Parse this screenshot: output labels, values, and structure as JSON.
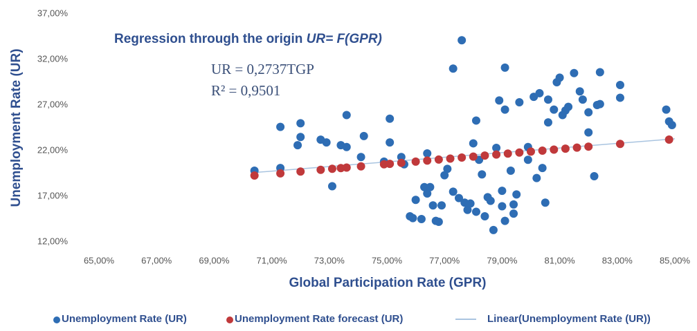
{
  "chart_data": {
    "type": "scatter",
    "title": "Regression through the origin ",
    "title_italic": "UR= F(GPR)",
    "annotations": [
      "UR = 0,2737TGP",
      "R² = 0,9501"
    ],
    "x_label": "Global Participation Rate (GPR)",
    "y_label": "Unemployment Rate (UR)",
    "xlim": [
      65,
      85
    ],
    "xticks": [
      {
        "value": 65,
        "label": "65,00%"
      },
      {
        "value": 67,
        "label": "67,00%"
      },
      {
        "value": 69,
        "label": "69,00%"
      },
      {
        "value": 71,
        "label": "71,00%"
      },
      {
        "value": 73,
        "label": "73,00%"
      },
      {
        "value": 75,
        "label": "75,00%"
      },
      {
        "value": 77,
        "label": "77,00%"
      },
      {
        "value": 79,
        "label": "79,00%"
      },
      {
        "value": 81,
        "label": "81,00%"
      },
      {
        "value": 83,
        "label": "83,00%"
      },
      {
        "value": 85,
        "label": "85,00%"
      }
    ],
    "ylim": [
      12,
      37
    ],
    "yticks": [
      {
        "value": 12,
        "label": "12,00%"
      },
      {
        "value": 17,
        "label": "17,00%"
      },
      {
        "value": 22,
        "label": "22,00%"
      },
      {
        "value": 27,
        "label": "27,00%"
      },
      {
        "value": 32,
        "label": "32,00%"
      },
      {
        "value": 37,
        "label": "37,00%"
      }
    ],
    "legend": "bottom",
    "series": [
      {
        "name": "Unemployment Rate (UR)",
        "color": "#2e6db4",
        "mark": "point",
        "x": [
          70.4,
          71.3,
          71.3,
          71.9,
          72.0,
          72.0,
          72.7,
          72.9,
          73.1,
          73.4,
          73.6,
          73.6,
          74.1,
          74.2,
          74.9,
          75.1,
          75.1,
          75.5,
          75.6,
          75.8,
          75.9,
          76.0,
          76.2,
          76.3,
          76.4,
          76.4,
          76.5,
          76.6,
          76.7,
          76.8,
          76.9,
          77.0,
          77.1,
          77.3,
          77.3,
          77.5,
          77.6,
          77.7,
          77.8,
          77.9,
          78.0,
          78.1,
          78.1,
          78.2,
          78.3,
          78.4,
          78.5,
          78.6,
          78.7,
          78.8,
          78.9,
          79.0,
          79.0,
          79.1,
          79.1,
          79.1,
          79.3,
          79.4,
          79.4,
          79.5,
          79.6,
          79.9,
          79.9,
          80.1,
          80.2,
          80.3,
          80.4,
          80.5,
          80.6,
          80.6,
          80.8,
          80.9,
          81.0,
          81.1,
          81.2,
          81.3,
          81.5,
          81.7,
          81.8,
          82.0,
          82.0,
          82.2,
          82.3,
          82.4,
          82.4,
          83.1,
          83.1,
          84.7,
          84.8,
          84.9
        ],
        "values": [
          19.8,
          24.6,
          20.1,
          22.6,
          25.0,
          23.5,
          23.2,
          22.9,
          18.1,
          22.6,
          22.4,
          25.9,
          21.3,
          23.6,
          20.8,
          25.5,
          22.9,
          21.3,
          20.5,
          14.8,
          14.6,
          16.6,
          14.5,
          18.0,
          17.3,
          21.7,
          18.0,
          16.0,
          14.3,
          14.2,
          16.0,
          19.3,
          20.0,
          17.5,
          31.0,
          16.8,
          34.1,
          16.3,
          15.5,
          16.2,
          22.8,
          25.3,
          15.3,
          21.0,
          19.4,
          14.8,
          16.9,
          16.5,
          13.3,
          22.3,
          27.5,
          17.6,
          15.9,
          31.1,
          26.5,
          14.3,
          19.8,
          15.1,
          16.1,
          17.2,
          27.3,
          22.4,
          21.0,
          27.9,
          19.0,
          28.3,
          20.1,
          16.3,
          27.6,
          25.1,
          26.5,
          29.5,
          30.0,
          25.9,
          26.4,
          26.8,
          30.5,
          28.5,
          27.6,
          24.0,
          26.2,
          19.2,
          27.0,
          30.6,
          27.1,
          29.2,
          27.8,
          26.5,
          25.2,
          24.8
        ]
      },
      {
        "name": "Unemployment Rate forecast (UR)",
        "color": "#c0393b",
        "mark": "point",
        "x": [
          70.4,
          71.3,
          72.0,
          72.7,
          73.1,
          73.4,
          73.6,
          74.1,
          74.9,
          75.1,
          75.5,
          76.0,
          76.4,
          76.8,
          77.2,
          77.6,
          78.0,
          78.4,
          78.8,
          79.2,
          79.6,
          80.0,
          80.4,
          80.8,
          81.2,
          81.6,
          82.0,
          83.1,
          84.8
        ],
        "values": [
          19.27,
          19.51,
          19.71,
          19.9,
          20.01,
          20.09,
          20.14,
          20.28,
          20.5,
          20.55,
          20.66,
          20.8,
          20.91,
          21.02,
          21.13,
          21.24,
          21.35,
          21.46,
          21.57,
          21.68,
          21.79,
          21.9,
          22.0,
          22.11,
          22.22,
          22.33,
          22.44,
          22.74,
          23.21
        ]
      },
      {
        "name": "Linear(Unemployment Rate (UR))",
        "color": "#a9c4e0",
        "mark": "line",
        "x": [
          70.4,
          85
        ],
        "values": [
          19.6,
          23.3
        ]
      }
    ]
  }
}
